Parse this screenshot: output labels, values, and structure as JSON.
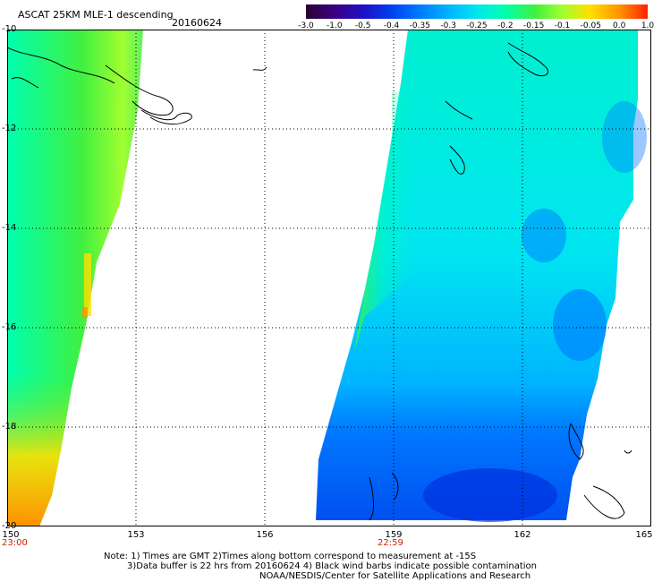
{
  "header": {
    "title": "ASCAT 25KM MLE-1 descending",
    "date": "20160624"
  },
  "colorbar": {
    "labels": [
      "-3.0",
      "-1.0",
      "-0.5",
      "-0.4",
      "-0.35",
      "-0.3",
      "-0.25",
      "-0.2",
      "-0.15",
      "-0.1",
      "-0.05",
      "0.0",
      "1.0"
    ],
    "colors": [
      "#2a0030",
      "#3a0080",
      "#1e10c8",
      "#0040f0",
      "#0078ff",
      "#00b4ff",
      "#00e6f0",
      "#00ffb0",
      "#40f040",
      "#a0ff30",
      "#ffe000",
      "#ff9000",
      "#ff2000"
    ]
  },
  "map": {
    "x_ticks": [
      "150",
      "153",
      "156",
      "159",
      "162",
      "165"
    ],
    "y_ticks": [
      "-10",
      "-12",
      "-14",
      "-16",
      "-18",
      "-20"
    ],
    "x_range": [
      150,
      165
    ],
    "y_range": [
      -10,
      -20
    ],
    "pass_times": [
      {
        "label": "23:00",
        "lon": 150
      },
      {
        "label": "22:59",
        "lon": 159
      }
    ]
  },
  "notes": {
    "line1": "Note: 1) Times are GMT 2)Times along bottom correspond to measurement at -15S",
    "line2": "3)Data buffer is 22 hrs from 20160624 4) Black wind barbs indicate possible contamination",
    "line3": "NOAA/NESDIS/Center for Satellite Applications and Research"
  }
}
